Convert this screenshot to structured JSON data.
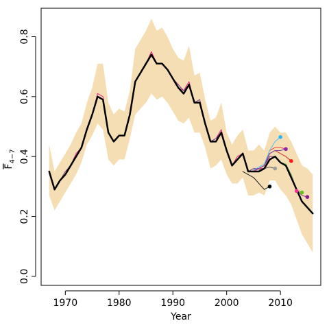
{
  "chart_data": {
    "type": "line",
    "title": "",
    "xlabel": "Year",
    "ylabel": "F",
    "ylabel_subscript": "4−7",
    "xlim": [
      1965.5,
      2017.5
    ],
    "ylim": [
      -0.03,
      0.895
    ],
    "x_ticks": [
      1970,
      1980,
      1990,
      2000,
      2010
    ],
    "y_ticks": [
      0.0,
      0.2,
      0.4,
      0.6,
      0.8
    ],
    "x_tick_labels": [
      "1970",
      "1980",
      "1990",
      "2000",
      "2010"
    ],
    "y_tick_labels": [
      "0.0",
      "0.2",
      "0.4",
      "0.6",
      "0.8"
    ],
    "grid": false,
    "legend": "none",
    "colors": {
      "band": "#f5deb3",
      "main": "#000000",
      "frame": "#000000"
    },
    "confidence_band": {
      "x": [
        1967,
        1968,
        1969,
        1970,
        1971,
        1972,
        1973,
        1974,
        1975,
        1976,
        1977,
        1978,
        1979,
        1980,
        1981,
        1982,
        1983,
        1984,
        1985,
        1986,
        1987,
        1988,
        1989,
        1990,
        1991,
        1992,
        1993,
        1994,
        1995,
        1996,
        1997,
        1998,
        1999,
        2000,
        2001,
        2002,
        2003,
        2004,
        2005,
        2006,
        2007,
        2008,
        2009,
        2010,
        2011,
        2012,
        2013,
        2014,
        2015,
        2016
      ],
      "lower": [
        0.27,
        0.22,
        0.25,
        0.28,
        0.31,
        0.34,
        0.38,
        0.44,
        0.47,
        0.51,
        0.49,
        0.39,
        0.37,
        0.39,
        0.39,
        0.46,
        0.54,
        0.56,
        0.58,
        0.61,
        0.59,
        0.6,
        0.58,
        0.55,
        0.52,
        0.51,
        0.53,
        0.48,
        0.48,
        0.43,
        0.36,
        0.37,
        0.39,
        0.34,
        0.31,
        0.31,
        0.33,
        0.27,
        0.27,
        0.28,
        0.27,
        0.32,
        0.32,
        0.29,
        0.27,
        0.24,
        0.19,
        0.14,
        0.11,
        0.08
      ],
      "upper": [
        0.44,
        0.35,
        0.38,
        0.41,
        0.44,
        0.48,
        0.51,
        0.58,
        0.63,
        0.71,
        0.71,
        0.58,
        0.54,
        0.56,
        0.55,
        0.62,
        0.76,
        0.79,
        0.82,
        0.86,
        0.82,
        0.83,
        0.8,
        0.76,
        0.73,
        0.72,
        0.77,
        0.67,
        0.68,
        0.59,
        0.52,
        0.53,
        0.58,
        0.48,
        0.44,
        0.47,
        0.49,
        0.42,
        0.42,
        0.44,
        0.42,
        0.48,
        0.5,
        0.48,
        0.48,
        0.45,
        0.41,
        0.37,
        0.36,
        0.34
      ]
    },
    "series": [
      {
        "color": "#000000",
        "width": 2.5,
        "x": [
          1967,
          1968,
          1969,
          1970,
          1971,
          1972,
          1973,
          1974,
          1975,
          1976,
          1977,
          1978,
          1979,
          1980,
          1981,
          1982,
          1983,
          1984,
          1985,
          1986,
          1987,
          1988,
          1989,
          1990,
          1991,
          1992,
          1993,
          1994,
          1995,
          1996,
          1997,
          1998,
          1999,
          2000,
          2001,
          2002,
          2003,
          2004,
          2005,
          2006,
          2007,
          2008,
          2009,
          2010,
          2011,
          2012,
          2013,
          2014,
          2015,
          2016
        ],
        "y": [
          0.35,
          0.29,
          0.32,
          0.34,
          0.37,
          0.4,
          0.43,
          0.49,
          0.54,
          0.6,
          0.59,
          0.48,
          0.45,
          0.47,
          0.47,
          0.54,
          0.65,
          0.68,
          0.71,
          0.74,
          0.71,
          0.71,
          0.69,
          0.66,
          0.63,
          0.61,
          0.64,
          0.58,
          0.58,
          0.51,
          0.45,
          0.45,
          0.48,
          0.42,
          0.37,
          0.39,
          0.41,
          0.35,
          0.35,
          0.35,
          0.36,
          0.39,
          0.4,
          0.38,
          0.37,
          0.33,
          0.29,
          0.25,
          0.23,
          0.21
        ]
      },
      {
        "color": "#e0208a",
        "width": 1,
        "x": [
          1967,
          1968,
          1969,
          1970,
          1971,
          1972,
          1973,
          1974,
          1975,
          1976,
          1977,
          1978,
          1979,
          1980,
          1981,
          1982,
          1983,
          1984,
          1985,
          1986,
          1987,
          1988,
          1989,
          1990,
          1991,
          1992,
          1993,
          1994,
          1995,
          1996,
          1997,
          1998,
          1999,
          2000,
          2001,
          2002,
          2003,
          2004,
          2005,
          2006,
          2007,
          2008,
          2009,
          2010,
          2011,
          2012,
          2013
        ],
        "y": [
          0.35,
          0.29,
          0.32,
          0.34,
          0.37,
          0.41,
          0.43,
          0.49,
          0.54,
          0.61,
          0.6,
          0.48,
          0.45,
          0.47,
          0.47,
          0.54,
          0.65,
          0.68,
          0.71,
          0.75,
          0.71,
          0.71,
          0.69,
          0.66,
          0.63,
          0.62,
          0.65,
          0.58,
          0.58,
          0.51,
          0.45,
          0.46,
          0.49,
          0.42,
          0.37,
          0.4,
          0.41,
          0.35,
          0.35,
          0.36,
          0.36,
          0.39,
          0.4,
          0.38,
          0.37,
          0.34,
          0.29
        ]
      },
      {
        "color": "#7a378b",
        "width": 1,
        "x": [
          1967,
          1968,
          1969,
          1970,
          1971,
          1972,
          1973,
          1974,
          1975,
          1976,
          1977,
          1978,
          1979,
          1980,
          1981,
          1982,
          1983,
          1984,
          1985,
          1986,
          1987,
          1988,
          1989,
          1990,
          1991,
          1992,
          1993,
          1994,
          1995,
          1996,
          1997,
          1998,
          1999,
          2000,
          2001,
          2002,
          2003,
          2004,
          2005,
          2006,
          2007,
          2008,
          2009,
          2010,
          2011,
          2012,
          2013,
          2014,
          2015
        ],
        "y": [
          0.35,
          0.29,
          0.32,
          0.35,
          0.37,
          0.4,
          0.43,
          0.49,
          0.54,
          0.6,
          0.59,
          0.48,
          0.45,
          0.47,
          0.47,
          0.54,
          0.65,
          0.68,
          0.71,
          0.74,
          0.71,
          0.71,
          0.69,
          0.66,
          0.64,
          0.62,
          0.64,
          0.58,
          0.59,
          0.51,
          0.45,
          0.46,
          0.48,
          0.42,
          0.37,
          0.39,
          0.41,
          0.35,
          0.36,
          0.36,
          0.37,
          0.4,
          0.4,
          0.38,
          0.37,
          0.33,
          0.29,
          0.27,
          0.265
        ]
      },
      {
        "color": "#d62b2b",
        "width": 1,
        "x": [
          2005,
          2006,
          2007,
          2008,
          2009,
          2010,
          2011,
          2012
        ],
        "y": [
          0.355,
          0.36,
          0.37,
          0.41,
          0.42,
          0.41,
          0.4,
          0.385
        ]
      },
      {
        "color": "#e84646",
        "width": 1,
        "x": [
          2006,
          2007,
          2008,
          2009,
          2010,
          2011
        ],
        "y": [
          0.36,
          0.37,
          0.42,
          0.43,
          0.43,
          0.425
        ]
      },
      {
        "color": "#7b3fa0",
        "width": 1,
        "x": [
          2005,
          2006,
          2007,
          2008,
          2009,
          2010,
          2011
        ],
        "y": [
          0.355,
          0.36,
          0.37,
          0.41,
          0.42,
          0.42,
          0.425
        ]
      },
      {
        "color": "#4fc3f7",
        "width": 1,
        "x": [
          2005,
          2006,
          2007,
          2008,
          2009,
          2010
        ],
        "y": [
          0.355,
          0.365,
          0.375,
          0.42,
          0.45,
          0.465
        ]
      },
      {
        "color": "#6abf40",
        "width": 1,
        "x": [
          2009,
          2010,
          2011,
          2012,
          2013,
          2014
        ],
        "y": [
          0.4,
          0.38,
          0.375,
          0.34,
          0.29,
          0.28
        ]
      },
      {
        "color": "#555555",
        "width": 1,
        "x": [
          2006,
          2007,
          2008,
          2009
        ],
        "y": [
          0.355,
          0.36,
          0.365,
          0.36
        ]
      },
      {
        "color": "#222222",
        "width": 1,
        "x": [
          2003,
          2004,
          2005,
          2006,
          2007,
          2008
        ],
        "y": [
          0.35,
          0.34,
          0.33,
          0.31,
          0.29,
          0.3
        ]
      }
    ],
    "endpoints": [
      {
        "x": 2008,
        "y": 0.3,
        "color": "#000000"
      },
      {
        "x": 2009,
        "y": 0.36,
        "color": "#9e9e9e"
      },
      {
        "x": 2010,
        "y": 0.465,
        "color": "#29b6f6"
      },
      {
        "x": 2011,
        "y": 0.425,
        "color": "#8e24aa"
      },
      {
        "x": 2012,
        "y": 0.385,
        "color": "#ff1a1a"
      },
      {
        "x": 2013,
        "y": 0.285,
        "color": "#ff2d9a"
      },
      {
        "x": 2014,
        "y": 0.28,
        "color": "#6abf1a"
      },
      {
        "x": 2015,
        "y": 0.265,
        "color": "#8b1a9b"
      }
    ]
  }
}
